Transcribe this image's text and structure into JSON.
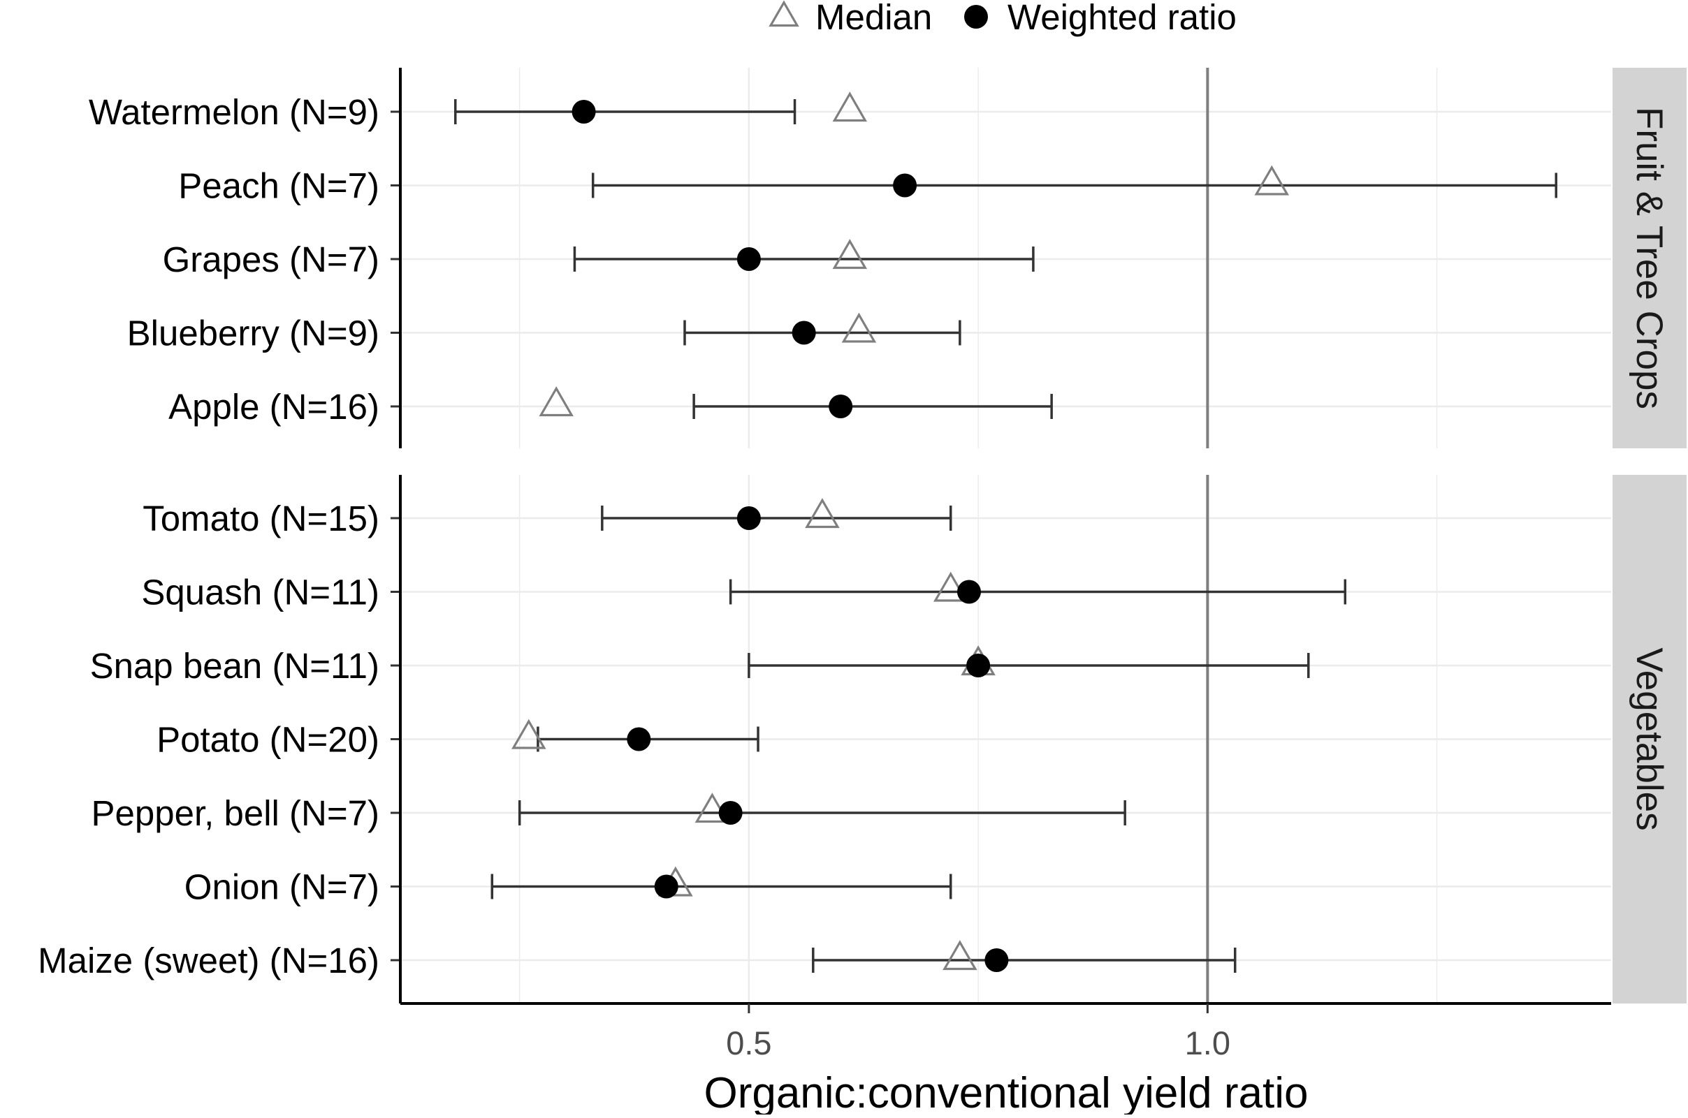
{
  "chart_data": {
    "type": "dot-errorbar",
    "xlabel": "Organic:conventional yield ratio",
    "x_ticks": [
      {
        "value": 0.5,
        "label": "0.5"
      },
      {
        "value": 1.0,
        "label": "1.0"
      }
    ],
    "xlim": [
      0.12,
      1.44
    ],
    "reference_line": 1.0,
    "grid": true,
    "legend": {
      "position": "top",
      "entries": [
        {
          "key": "median",
          "label": "Median",
          "symbol": "open-triangle"
        },
        {
          "key": "weighted",
          "label": "Weighted ratio",
          "symbol": "filled-circle"
        }
      ]
    },
    "colors": {
      "median": "#7f7f7f",
      "weighted": "#000000",
      "errorbar": "#333333",
      "strip": "#d3d3d3",
      "refline": "#7f7f7f",
      "grid": "#ebebeb"
    },
    "panels": [
      {
        "name": "Fruit & Tree Crops",
        "rows": [
          {
            "label": "Watermelon (N=9)",
            "weighted": 0.32,
            "median": 0.61,
            "lo": 0.18,
            "hi": 0.55
          },
          {
            "label": "Peach (N=7)",
            "weighted": 0.67,
            "median": 1.07,
            "lo": 0.33,
            "hi": 1.38
          },
          {
            "label": "Grapes (N=7)",
            "weighted": 0.5,
            "median": 0.61,
            "lo": 0.31,
            "hi": 0.81
          },
          {
            "label": "Blueberry  (N=9)",
            "weighted": 0.56,
            "median": 0.62,
            "lo": 0.43,
            "hi": 0.73
          },
          {
            "label": "Apple (N=16)",
            "weighted": 0.6,
            "median": 0.29,
            "lo": 0.44,
            "hi": 0.83
          }
        ]
      },
      {
        "name": "Vegetables",
        "rows": [
          {
            "label": "Tomato (N=15)",
            "weighted": 0.5,
            "median": 0.58,
            "lo": 0.34,
            "hi": 0.72
          },
          {
            "label": "Squash (N=11)",
            "weighted": 0.74,
            "median": 0.72,
            "lo": 0.48,
            "hi": 1.15
          },
          {
            "label": "Snap bean (N=11)",
            "weighted": 0.75,
            "median": 0.75,
            "lo": 0.5,
            "hi": 1.11
          },
          {
            "label": "Potato (N=20)",
            "weighted": 0.38,
            "median": 0.26,
            "lo": 0.27,
            "hi": 0.51
          },
          {
            "label": "Pepper, bell (N=7)",
            "weighted": 0.48,
            "median": 0.46,
            "lo": 0.25,
            "hi": 0.91
          },
          {
            "label": "Onion (N=7)",
            "weighted": 0.41,
            "median": 0.42,
            "lo": 0.22,
            "hi": 0.72
          },
          {
            "label": "Maize (sweet) (N=16)",
            "weighted": 0.77,
            "median": 0.73,
            "lo": 0.57,
            "hi": 1.03
          }
        ]
      }
    ]
  }
}
